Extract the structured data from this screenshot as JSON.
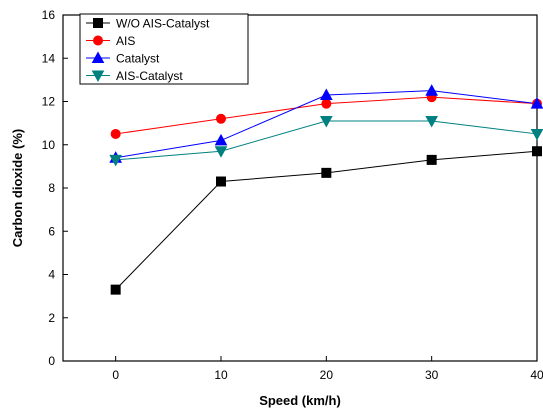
{
  "chart_data": {
    "type": "line",
    "xlabel": "Speed (km/h)",
    "ylabel": "Carbon dioxide (%)",
    "x": [
      0,
      10,
      20,
      30,
      40
    ],
    "xlim": [
      -5,
      40
    ],
    "ylim": [
      0,
      16
    ],
    "xticks": [
      0,
      10,
      20,
      30,
      40
    ],
    "yticks": [
      0,
      2,
      4,
      6,
      8,
      10,
      12,
      14,
      16
    ],
    "grid": false,
    "legend_position": "top-left",
    "series": [
      {
        "name": "W/O AIS-Catalyst",
        "values": [
          3.3,
          8.3,
          8.7,
          9.3,
          9.7
        ],
        "color": "#000000",
        "marker": "square"
      },
      {
        "name": "AIS",
        "values": [
          10.5,
          11.2,
          11.9,
          12.2,
          11.9
        ],
        "color": "#ff0000",
        "marker": "circle"
      },
      {
        "name": "Catalyst",
        "values": [
          9.4,
          10.2,
          12.3,
          12.5,
          11.9
        ],
        "color": "#0000ff",
        "marker": "triangle-up"
      },
      {
        "name": "AIS-Catalyst",
        "values": [
          9.3,
          9.7,
          11.1,
          11.1,
          10.5
        ],
        "color": "#008080",
        "marker": "triangle-down"
      }
    ]
  }
}
